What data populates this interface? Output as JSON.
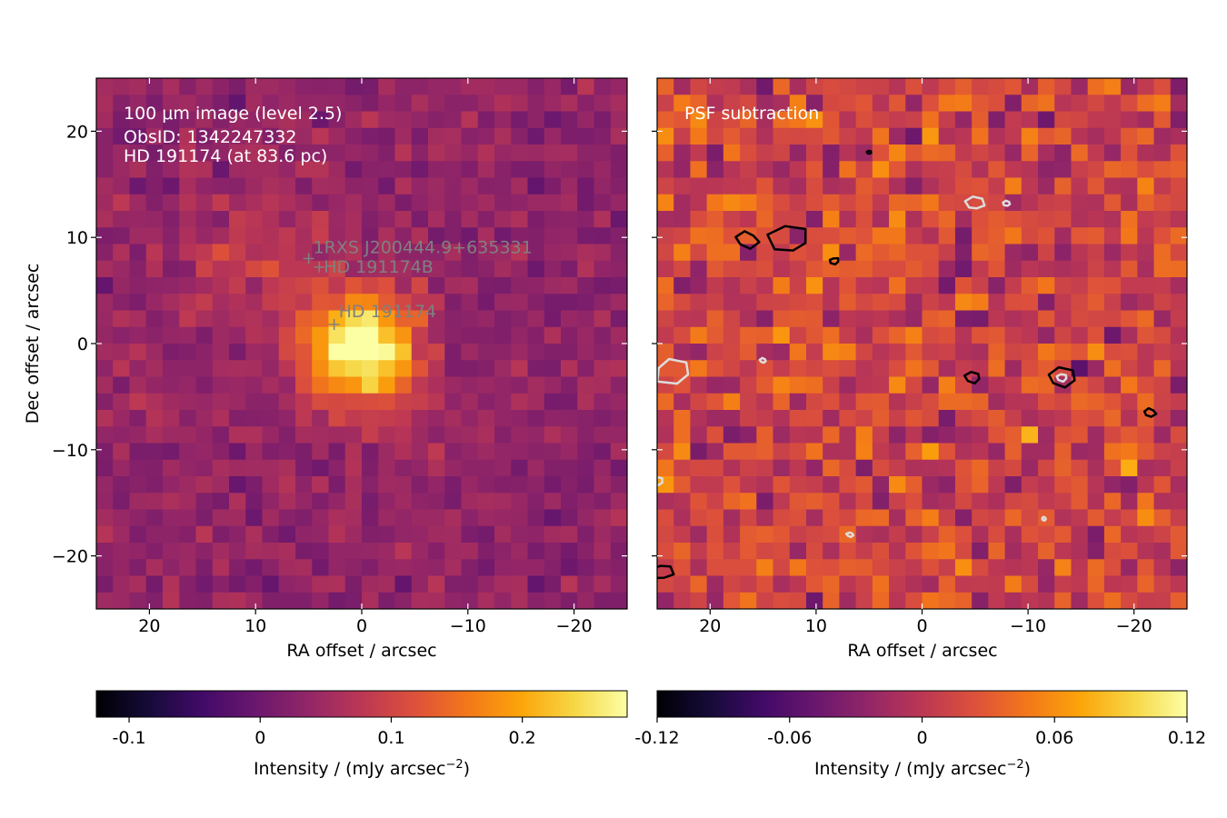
{
  "chart_data": [
    {
      "type": "heatmap",
      "panel": "left",
      "title": "",
      "annotations": [
        "100 μm image (level 2.5)",
        "ObsID: 1342247332",
        "HD 191174 (at 83.6 pc)"
      ],
      "xlabel": "RA offset / arcsec",
      "ylabel": "Dec offset / arcsec",
      "xlim": [
        25,
        -25
      ],
      "ylim": [
        -25,
        25
      ],
      "xticks": [
        20,
        10,
        0,
        -10,
        -20
      ],
      "xtick_labels": [
        "20",
        "10",
        "0",
        "−10",
        "−20"
      ],
      "yticks": [
        20,
        10,
        0,
        -10,
        -20
      ],
      "ytick_labels": [
        "20",
        "10",
        "0",
        "−10",
        "−20"
      ],
      "pixel_scale_arcsec": 1.6,
      "colormap": "inferno",
      "markers": [
        {
          "label": "1RXS J200444.9+635331",
          "ra": 5.0,
          "dec": 8.0
        },
        {
          "label": "HD 191174B",
          "ra": 4.0,
          "dec": 7.2
        },
        {
          "label": "HD 191174",
          "ra": 2.6,
          "dec": 1.8
        }
      ],
      "marker_color": "#808080",
      "source_peak": {
        "ra": 0,
        "dec": -0.5,
        "peak_intensity": 0.27
      },
      "colorbar": {
        "min": -0.125,
        "max": 0.28,
        "ticks": [
          -0.1,
          0,
          0.1,
          0.2
        ],
        "tick_labels": [
          "-0.1",
          "0",
          "0.1",
          "0.2"
        ],
        "label": "Intensity / (mJy arcsec",
        "label_sup": "−2",
        "label_end": ")"
      }
    },
    {
      "type": "heatmap",
      "panel": "right",
      "title": "",
      "annotations": [
        "PSF subtraction"
      ],
      "xlabel": "RA offset / arcsec",
      "ylabel": "",
      "xlim": [
        25,
        -25
      ],
      "ylim": [
        -25,
        25
      ],
      "xticks": [
        20,
        10,
        0,
        -10,
        -20
      ],
      "xtick_labels": [
        "20",
        "10",
        "0",
        "−10",
        "−20"
      ],
      "colormap": "inferno",
      "contours_positive": [
        {
          "ra": 16.5,
          "dec": 9.8
        },
        {
          "ra": 12.5,
          "dec": 9.8
        },
        {
          "ra": 8.3,
          "dec": 7.8
        },
        {
          "ra": -13.2,
          "dec": -3.2
        },
        {
          "ra": -21.5,
          "dec": -6.5
        },
        {
          "ra": -4.8,
          "dec": -3.2
        },
        {
          "ra": 5.0,
          "dec": 18.0
        },
        {
          "ra": 24.5,
          "dec": -21.5
        }
      ],
      "contours_negative": [
        {
          "ra": 23.5,
          "dec": -2.6
        },
        {
          "ra": -5.0,
          "dec": 13.2
        },
        {
          "ra": -8.0,
          "dec": 13.2
        },
        {
          "ra": 15.0,
          "dec": -1.6
        },
        {
          "ra": 6.8,
          "dec": -18.0
        },
        {
          "ra": -11.5,
          "dec": -16.5
        },
        {
          "ra": -13.2,
          "dec": -3.2
        },
        {
          "ra": 25.0,
          "dec": -13.0
        }
      ],
      "colorbar": {
        "min": -0.12,
        "max": 0.12,
        "ticks": [
          -0.12,
          -0.06,
          0,
          0.06,
          0.12
        ],
        "tick_labels": [
          "-0.12",
          "-0.06",
          "0",
          "0.06",
          "0.12"
        ],
        "label": "Intensity / (mJy arcsec",
        "label_sup": "−2",
        "label_end": ")"
      }
    }
  ]
}
